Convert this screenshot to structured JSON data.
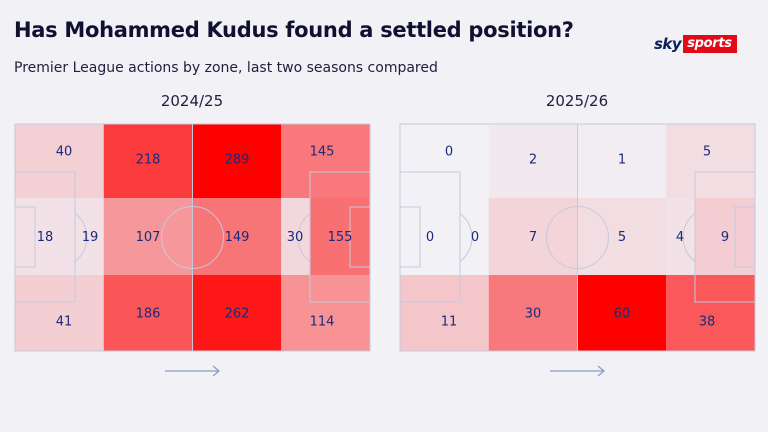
{
  "header": {
    "title": "Has Mohammed Kudus found a settled position?",
    "subtitle": "Premier League actions by zone, last two seasons compared"
  },
  "logo": {
    "sky": "sky",
    "sports": "sports"
  },
  "colors": {
    "low": "#f1f1f6",
    "high": "#ff0000",
    "text": "#1b2a7a",
    "line": "#c6c9dc",
    "arrow": "#8a9bc4"
  },
  "chart_data": [
    {
      "type": "heatmap",
      "title": "2024/25",
      "direction": "left-to-right",
      "zones": {
        "top": [
          40,
          218,
          289,
          145
        ],
        "middle": [
          18,
          19,
          107,
          149,
          30,
          155
        ],
        "bottom": [
          41,
          186,
          262,
          114
        ]
      },
      "color_max": 289
    },
    {
      "type": "heatmap",
      "title": "2025/26",
      "direction": "left-to-right",
      "zones": {
        "top": [
          0,
          2,
          1,
          5
        ],
        "middle": [
          0,
          0,
          7,
          5,
          4,
          9
        ],
        "bottom": [
          11,
          30,
          60,
          38
        ]
      },
      "color_max": 60
    }
  ]
}
